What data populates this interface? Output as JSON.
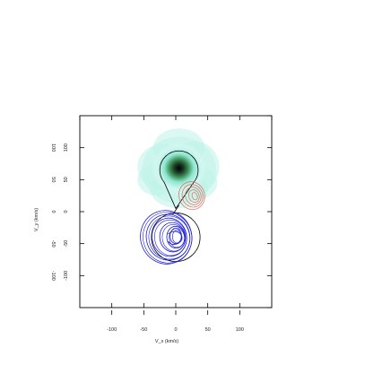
{
  "chart_data": {
    "type": "contour",
    "xlabel": "V_x (km/s)",
    "ylabel": "V_y (km/s)",
    "xlim": [
      -150,
      150
    ],
    "ylim": [
      -150,
      150
    ],
    "x_ticks": [
      -100,
      -50,
      0,
      50,
      100
    ],
    "x_tick_labels": [
      "-100",
      "-50",
      "0",
      "50",
      "100"
    ],
    "y_ticks": [
      -100,
      -50,
      0,
      50,
      100
    ],
    "y_tick_labels": [
      "-100",
      "-50",
      "0",
      "50",
      "100"
    ],
    "right_tick_labels": [
      "100",
      "50",
      "0",
      "-50",
      "-100"
    ],
    "top_ticks": [
      -150,
      -100,
      -50,
      0,
      50,
      100,
      150
    ],
    "right_ticks": [
      -150,
      -100,
      -50,
      0,
      50,
      100,
      150
    ],
    "colors": {
      "image_core": "#000000",
      "image_mid": "#3a8a52",
      "image_halo": "#bff3ea",
      "black_contour": "#000000",
      "red_contour": "#e06a5a",
      "blue_contour": "#1a1ad8"
    },
    "components": [
      {
        "color": "black",
        "shape": "teardrop",
        "center": [
          5,
          65
        ],
        "radius": 30,
        "tip": [
          0,
          5
        ]
      },
      {
        "color": "black",
        "shape": "ellipse",
        "center": [
          0,
          -40
        ],
        "rx": 38,
        "ry": 38
      },
      {
        "color": "red",
        "center": [
          25,
          25
        ],
        "levels": [
          [
            20,
            22,
            -20
          ],
          [
            16,
            18,
            -20
          ],
          [
            12,
            14,
            -20
          ],
          [
            8,
            10,
            -20
          ],
          [
            4,
            6,
            -20
          ]
        ]
      },
      {
        "color": "blue",
        "center": [
          -15,
          -40
        ],
        "levels": [
          [
            -15,
            -40,
            40,
            42
          ],
          [
            -12,
            -40,
            34,
            36
          ],
          [
            -10,
            -40,
            27,
            30
          ],
          [
            -5,
            -40,
            20,
            23
          ],
          [
            0,
            -40,
            14,
            17
          ],
          [
            0,
            -38,
            9,
            12
          ]
        ]
      }
    ]
  }
}
